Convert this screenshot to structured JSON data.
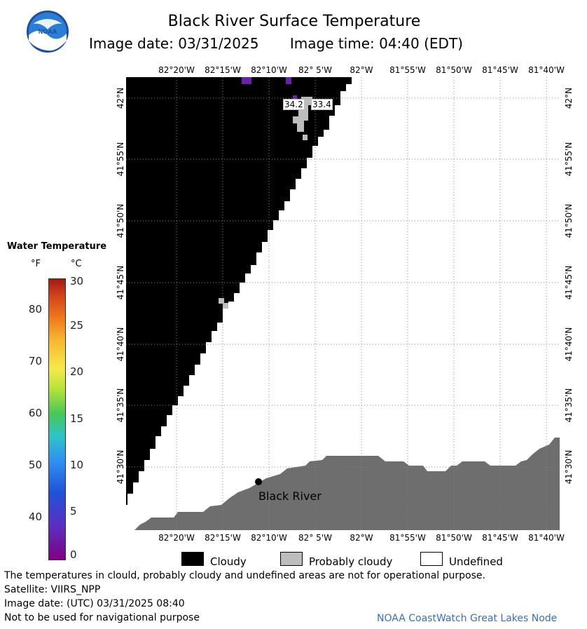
{
  "title": "Black River Surface Temperature",
  "image_date": "Image date: 03/31/2025",
  "image_time": "Image time: 04:40 (EDT)",
  "logo_text": "NOAA",
  "longitude_labels": [
    "82°20'W",
    "82°15'W",
    "82°10'W",
    "82° 5'W",
    "82°W",
    "81°55'W",
    "81°50'W",
    "81°45'W",
    "81°40'W"
  ],
  "latitude_labels": [
    "42°N",
    "41°55'N",
    "41°50'N",
    "41°45'N",
    "41°40'N",
    "41°35'N",
    "41°30'N"
  ],
  "point_values": [
    "34.2",
    "33.4"
  ],
  "location_label": "Black River",
  "legend": {
    "title": "Water Temperature",
    "unit_f": "°F",
    "unit_c": "°C",
    "ticks_f": [
      "80",
      "70",
      "60",
      "50",
      "40"
    ],
    "ticks_c": [
      "30",
      "25",
      "20",
      "15",
      "10",
      "5",
      "0"
    ],
    "colors": [
      "#800080",
      "#1f52d8",
      "#2ec4c8",
      "#47c758",
      "#f3ea4b",
      "#ef7a1d",
      "#a11a12"
    ]
  },
  "key": [
    {
      "label": "Cloudy",
      "color": "#000000"
    },
    {
      "label": "Probably cloudy",
      "color": "#bdbdbd"
    },
    {
      "label": "Undefined",
      "color": "#ffffff"
    }
  ],
  "land_color": "#6e6e6e",
  "footer": {
    "disclaimer": "The temperatures in clould, probably cloudy and undefined areas are not for operational purpose.",
    "satellite": "Satellite: VIIRS_NPP",
    "utc_date": "Image date: (UTC) 03/31/2025  08:40",
    "navigation": "Not to be used for navigational purpose",
    "credit": "NOAA CoastWatch Great Lakes Node"
  }
}
